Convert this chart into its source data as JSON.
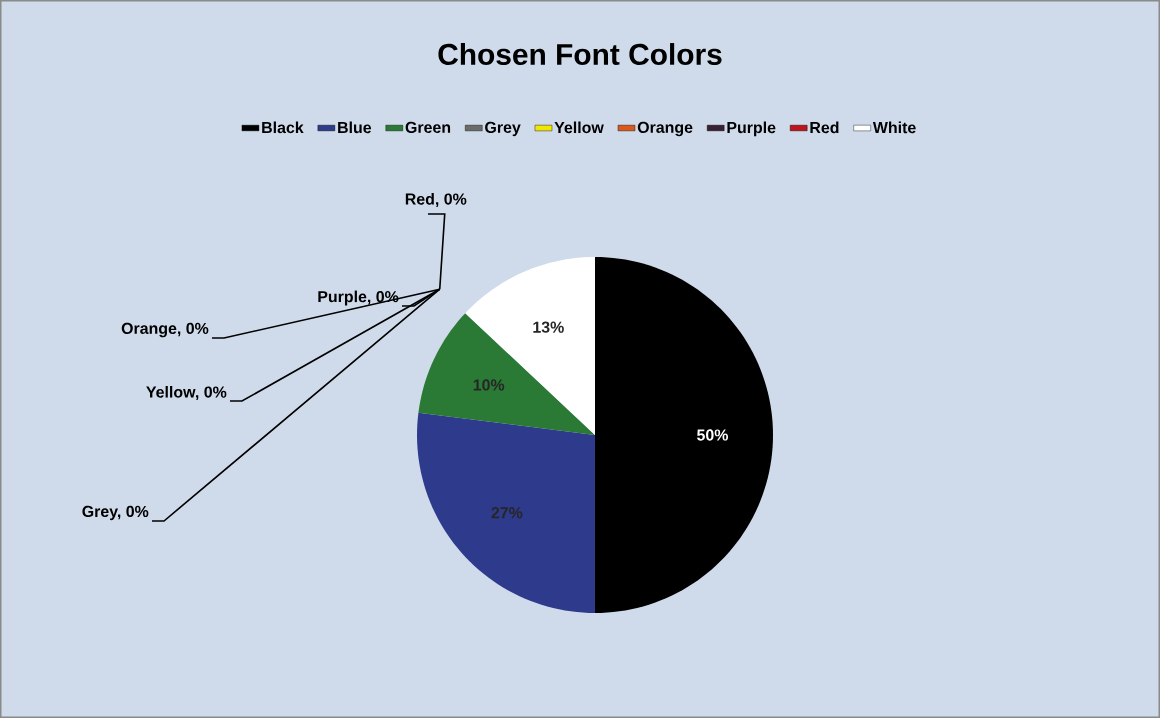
{
  "chart_data": {
    "type": "pie",
    "title": "Chosen Font Colors",
    "categories": [
      "Black",
      "Blue",
      "Green",
      "Grey",
      "Yellow",
      "Orange",
      "Purple",
      "Red",
      "White"
    ],
    "values": [
      50,
      27,
      10,
      0,
      0,
      0,
      0,
      0,
      13
    ],
    "colors": [
      "#000000",
      "#2e3a8c",
      "#2a7a35",
      "#6b6b6b",
      "#f2e600",
      "#d9581c",
      "#3a1f35",
      "#c0141c",
      "#ffffff"
    ],
    "value_labels": [
      "50%",
      "27%",
      "10%",
      "Grey, 0%",
      "Yellow, 0%",
      "Orange, 0%",
      "Purple, 0%",
      "Red, 0%",
      "13%"
    ],
    "legend": "top"
  }
}
